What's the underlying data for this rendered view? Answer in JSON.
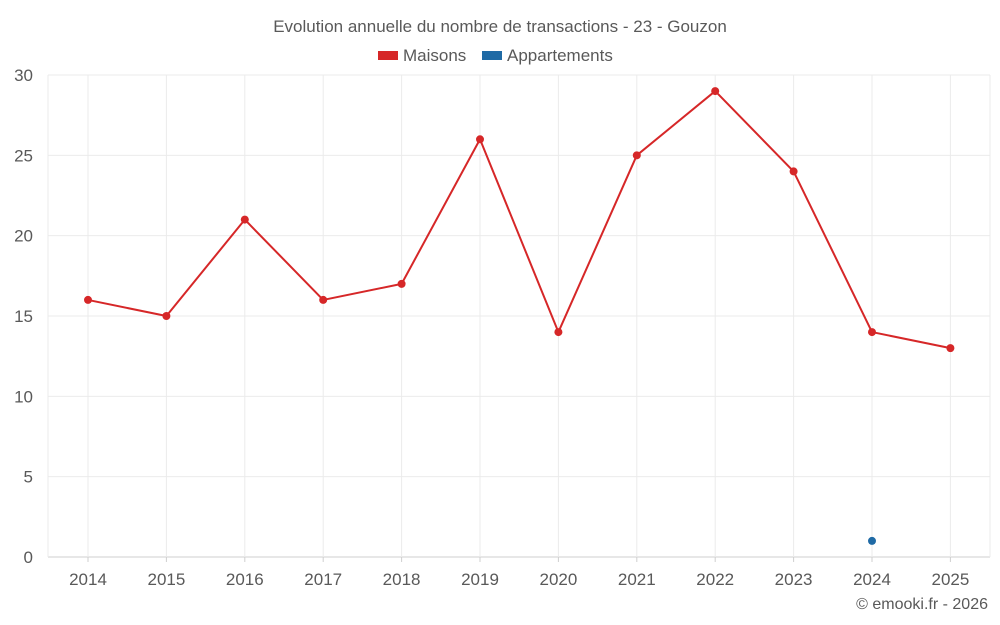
{
  "chart_data": {
    "type": "line",
    "title": "Evolution annuelle du nombre de transactions - 23 - Gouzon",
    "categories": [
      "2014",
      "2015",
      "2016",
      "2017",
      "2018",
      "2019",
      "2020",
      "2021",
      "2022",
      "2023",
      "2024",
      "2025"
    ],
    "series": [
      {
        "name": "Maisons",
        "color": "#d62728",
        "values": [
          16,
          15,
          21,
          16,
          17,
          26,
          14,
          25,
          29,
          24,
          14,
          13
        ]
      },
      {
        "name": "Appartements",
        "color": "#1f6aa5",
        "values": [
          null,
          null,
          null,
          null,
          null,
          null,
          null,
          null,
          null,
          null,
          1,
          null
        ]
      }
    ],
    "yticks": [
      "0",
      "5",
      "10",
      "15",
      "20",
      "25",
      "30"
    ],
    "ylim": [
      0,
      30
    ],
    "xlabel": "",
    "ylabel": "",
    "grid": true,
    "legend_position": "top-center"
  },
  "credit": "© emooki.fr - 2026"
}
